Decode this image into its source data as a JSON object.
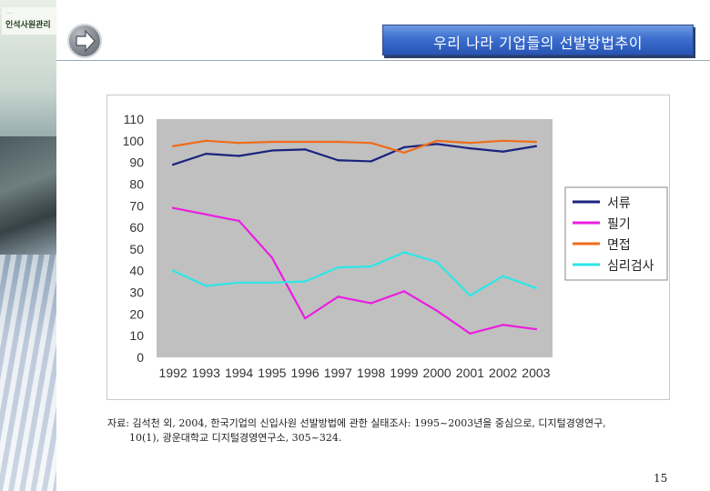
{
  "logo": {
    "small_text": "…",
    "name": "인석사원관리"
  },
  "slide": {
    "title": "우리 나라 기업들의 선발방법추이",
    "page_number": "15"
  },
  "source": {
    "line1": "자료: 김석천 외, 2004, 한국기업의 신입사원 선발방법에 관한 실태조사: 1995~2003년을 중심으로, 디지털경영연구,",
    "line2": "10(1), 광운대학교 디지털경영연구소, 305~324."
  },
  "chart_data": {
    "type": "line",
    "x": [
      "1992",
      "1993",
      "1994",
      "1995",
      "1996",
      "1997",
      "1998",
      "1999",
      "2000",
      "2001",
      "2002",
      "2003"
    ],
    "ylim": [
      0,
      110
    ],
    "yticks": [
      0,
      10,
      20,
      30,
      40,
      50,
      60,
      70,
      80,
      90,
      100,
      110
    ],
    "grid": false,
    "legend": "right",
    "plot_bg": "#c0c0c0",
    "series": [
      {
        "name": "서류",
        "color": "#1a237e",
        "values": [
          89,
          94,
          93,
          95.5,
          96,
          91,
          90.5,
          97,
          98.5,
          96.5,
          95,
          97.5
        ]
      },
      {
        "name": "필기",
        "color": "#e91ee0",
        "values": [
          69,
          66,
          63,
          46,
          18,
          28,
          25,
          30.5,
          21.5,
          11,
          15,
          13
        ]
      },
      {
        "name": "면접",
        "color": "#ef6c1a",
        "values": [
          97.5,
          100,
          99,
          99.5,
          99.5,
          99.5,
          99,
          94.5,
          100,
          99,
          100,
          99.5
        ]
      },
      {
        "name": "심리검사",
        "color": "#2ee6e6",
        "values": [
          40,
          33,
          34.5,
          34.5,
          35,
          41.5,
          42,
          48.5,
          44,
          28.5,
          37.5,
          32
        ]
      }
    ]
  }
}
